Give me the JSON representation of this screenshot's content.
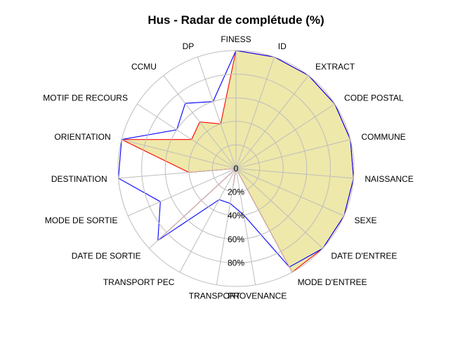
{
  "chart_data": {
    "type": "radar",
    "title": "Hus - Radar de complétude (%)",
    "axes": [
      "FINESS",
      "ID",
      "EXTRACT",
      "CODE POSTAL",
      "COMMUNE",
      "NAISSANCE",
      "SEXE",
      "DATE D'ENTREE",
      "MODE D'ENTREE",
      "PROVENANCE",
      "TRANSPORT",
      "TRANSPORT PEC",
      "DATE DE SORTIE",
      "MODE DE SORTIE",
      "DESTINATION",
      "ORIENTATION",
      "MOTIF DE RECOURS",
      "CCMU",
      "DP"
    ],
    "radial_ticks": [
      "0",
      "20%",
      "40%",
      "60%",
      "80%"
    ],
    "rmax": 100,
    "grid": true,
    "series": [
      {
        "color": "#ff0000",
        "fill": "#eee8aa",
        "values": [
          100,
          100,
          100,
          100,
          100,
          100,
          100,
          100,
          100,
          0,
          15,
          0,
          90,
          0,
          40,
          100,
          45,
          50,
          40
        ]
      },
      {
        "color": "#0000ff",
        "fill": "none",
        "values": [
          100,
          100,
          100,
          100,
          100,
          100,
          100,
          100,
          95,
          40,
          30,
          30,
          90,
          70,
          100,
          100,
          60,
          70,
          60
        ]
      }
    ]
  }
}
